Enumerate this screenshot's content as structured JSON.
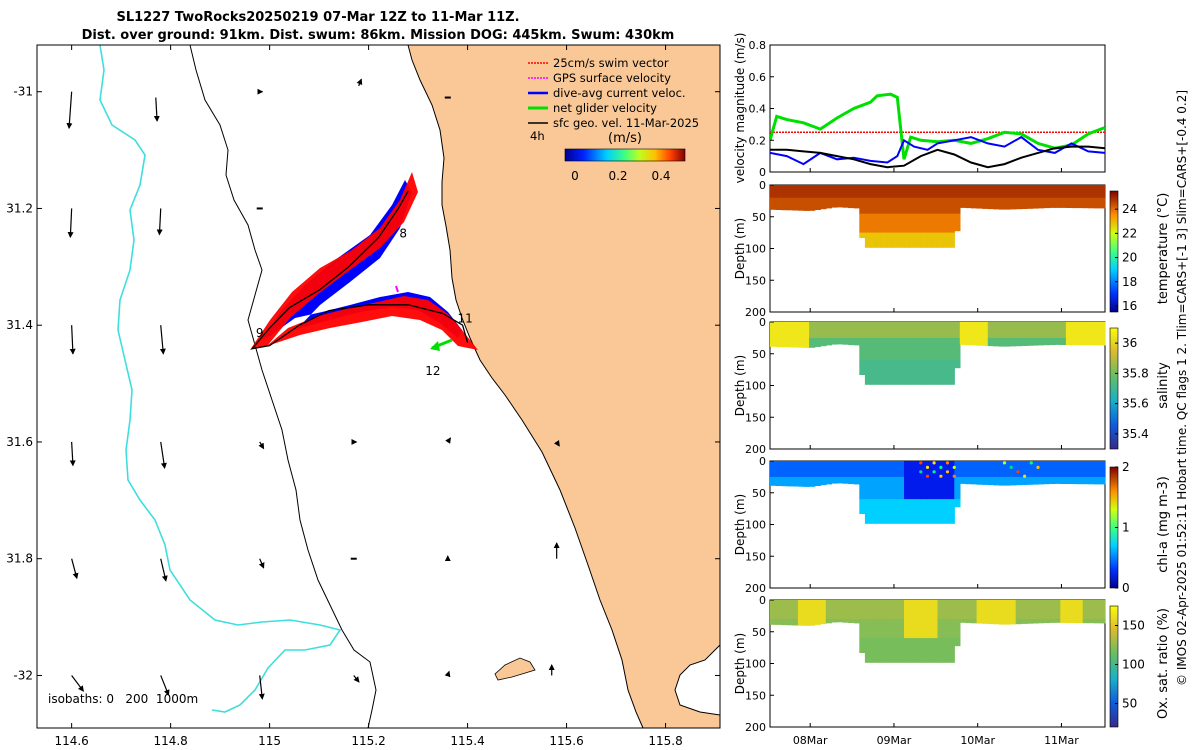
{
  "title": {
    "line1": "SL1227 TwoRocks20250219 07-Mar 12Z to 11-Mar 11Z.",
    "line2": "Dist. over ground: 91km. Dist. swum: 86km. Mission DOG: 445km. Swum: 430km"
  },
  "side_caption": "© IMOS 02-Apr-2025 01:52:11 Hobart time. QC flags 1  2. Tlim=CARS+[-1 3] Slim=CARS+[-0.4 0.2]",
  "colors": {
    "land": "#f9c896",
    "coast": "#000000",
    "isobath_0": "#000000",
    "isobath_1000": "#3fdede",
    "swim_vector": "#ff0000",
    "gps_velocity": "#ff00ff",
    "dive_avg": "#0000ff",
    "net_glider": "#00e000",
    "sfc_geo": "#000000"
  },
  "chart_data": [
    {
      "id": "track-map",
      "type": "scatter",
      "title": "SL1227 TwoRocks20250219 07-Mar 12Z to 11-Mar 11Z.",
      "xlim": [
        114.53,
        115.91
      ],
      "ylim": [
        -32.09,
        -30.92
      ],
      "x_ticks": [
        114.6,
        114.8,
        115,
        115.2,
        115.4,
        115.6,
        115.8
      ],
      "x_tick_labels": [
        "114.6",
        "114.8",
        "115",
        "115.2",
        "115.4",
        "115.6",
        "115.8"
      ],
      "y_ticks": [
        -31,
        -31.2,
        -31.4,
        -31.6,
        -31.8,
        -32
      ],
      "y_tick_labels": [
        "-31",
        "31.2",
        "31.4",
        "31.6",
        "31.8",
        "-32"
      ],
      "legend": [
        {
          "label": "25cm/s swim vector",
          "color": "#ff0000"
        },
        {
          "label": "GPS surface velocity",
          "color": "#ff00ff"
        },
        {
          "label": "dive-avg current veloc.",
          "color": "#0000ff"
        },
        {
          "label": "net glider velocity",
          "color": "#00e000"
        },
        {
          "label": "sfc geo. vel. 11-Mar-2025",
          "color": "#000000"
        }
      ],
      "legend_extra": "4h",
      "colorbar": {
        "label": "(m/s)",
        "ticks": [
          "0",
          "0.2",
          "0.4"
        ],
        "range": [
          0,
          0.5
        ]
      },
      "isobath_caption": "isobaths: 0   200  1000m",
      "track": [
        [
          115.28,
          -31.17
        ],
        [
          115.26,
          -31.2
        ],
        [
          115.22,
          -31.25
        ],
        [
          115.16,
          -31.3
        ],
        [
          115.1,
          -31.34
        ],
        [
          115.04,
          -31.37
        ],
        [
          115.0,
          -31.405
        ],
        [
          114.965,
          -31.44
        ],
        [
          115.0,
          -31.435
        ],
        [
          115.06,
          -31.4
        ],
        [
          115.12,
          -31.375
        ],
        [
          115.2,
          -31.365
        ],
        [
          115.28,
          -31.365
        ],
        [
          115.35,
          -31.38
        ],
        [
          115.39,
          -31.4
        ],
        [
          115.4,
          -31.43
        ]
      ],
      "day_labels": [
        {
          "label": "8",
          "x": 115.27,
          "y": -31.25
        },
        {
          "label": "9",
          "x": 114.98,
          "y": -31.42
        },
        {
          "label": "11",
          "x": 115.395,
          "y": -31.395
        },
        {
          "label": "12",
          "x": 115.33,
          "y": -31.485
        }
      ],
      "geo_vectors": [
        {
          "x": 114.6,
          "y": -31.0,
          "u": -0.02,
          "v": -0.28
        },
        {
          "x": 114.77,
          "y": -31.01,
          "u": 0.01,
          "v": -0.18
        },
        {
          "x": 114.98,
          "y": -31.0,
          "u": 0.02,
          "v": 0.0
        },
        {
          "x": 115.18,
          "y": -30.99,
          "u": 0.02,
          "v": 0.05
        },
        {
          "x": 115.36,
          "y": -31.01,
          "u": 0.0,
          "v": 0.0
        },
        {
          "x": 114.6,
          "y": -31.2,
          "u": -0.01,
          "v": -0.22
        },
        {
          "x": 114.78,
          "y": -31.2,
          "u": -0.01,
          "v": -0.2
        },
        {
          "x": 114.98,
          "y": -31.2,
          "u": 0.01,
          "v": 0.0
        },
        {
          "x": 114.6,
          "y": -31.4,
          "u": 0.01,
          "v": -0.22
        },
        {
          "x": 114.78,
          "y": -31.4,
          "u": 0.02,
          "v": -0.22
        },
        {
          "x": 114.6,
          "y": -31.6,
          "u": 0.01,
          "v": -0.18
        },
        {
          "x": 114.78,
          "y": -31.6,
          "u": 0.03,
          "v": -0.2
        },
        {
          "x": 114.98,
          "y": -31.6,
          "u": 0.03,
          "v": -0.05
        },
        {
          "x": 115.17,
          "y": -31.6,
          "u": 0.02,
          "v": 0.0
        },
        {
          "x": 115.36,
          "y": -31.6,
          "u": 0.02,
          "v": 0.03
        },
        {
          "x": 115.58,
          "y": -31.6,
          "u": 0.02,
          "v": -0.03
        },
        {
          "x": 114.6,
          "y": -31.8,
          "u": 0.04,
          "v": -0.15
        },
        {
          "x": 114.78,
          "y": -31.8,
          "u": 0.04,
          "v": -0.17
        },
        {
          "x": 114.98,
          "y": -31.8,
          "u": 0.03,
          "v": -0.07
        },
        {
          "x": 115.17,
          "y": -31.8,
          "u": 0.01,
          "v": 0.0
        },
        {
          "x": 115.36,
          "y": -31.8,
          "u": 0.0,
          "v": 0.02
        },
        {
          "x": 115.58,
          "y": -31.8,
          "u": 0.0,
          "v": 0.12
        },
        {
          "x": 114.6,
          "y": -32.0,
          "u": 0.09,
          "v": -0.12
        },
        {
          "x": 114.78,
          "y": -32.0,
          "u": 0.06,
          "v": -0.15
        },
        {
          "x": 114.98,
          "y": -32.0,
          "u": 0.02,
          "v": -0.18
        },
        {
          "x": 115.17,
          "y": -32.0,
          "u": 0.04,
          "v": -0.05
        },
        {
          "x": 115.36,
          "y": -32.0,
          "u": 0.01,
          "v": 0.03
        },
        {
          "x": 115.57,
          "y": -32.0,
          "u": 0.0,
          "v": 0.08
        }
      ]
    },
    {
      "id": "velocity",
      "type": "line",
      "ylabel": "velocity magnitude (m/s)",
      "ylim": [
        0,
        0.8
      ],
      "y_ticks": [
        0,
        0.2,
        0.4,
        0.6,
        0.8
      ],
      "x_ticks": [
        "08Mar",
        "09Mar",
        "10Mar",
        "11Mar"
      ],
      "series": [
        {
          "name": "25cm/s swim vector",
          "color": "#ff0000",
          "x": [
            0,
            0.25,
            0.5,
            0.75,
            1.0
          ],
          "y": [
            0.25,
            0.25,
            0.25,
            0.25,
            0.25
          ]
        },
        {
          "name": "net glider velocity",
          "color": "#00e000",
          "x": [
            0,
            0.02,
            0.05,
            0.1,
            0.15,
            0.2,
            0.25,
            0.3,
            0.32,
            0.36,
            0.38,
            0.4,
            0.42,
            0.45,
            0.5,
            0.55,
            0.6,
            0.65,
            0.7,
            0.75,
            0.8,
            0.85,
            0.9,
            0.95,
            1.0
          ],
          "y": [
            0.2,
            0.35,
            0.33,
            0.31,
            0.27,
            0.34,
            0.4,
            0.44,
            0.48,
            0.49,
            0.47,
            0.08,
            0.22,
            0.2,
            0.19,
            0.2,
            0.18,
            0.21,
            0.25,
            0.24,
            0.18,
            0.15,
            0.17,
            0.24,
            0.28
          ]
        },
        {
          "name": "dive-avg current veloc.",
          "color": "#0000ff",
          "x": [
            0,
            0.05,
            0.1,
            0.15,
            0.2,
            0.25,
            0.3,
            0.35,
            0.38,
            0.4,
            0.43,
            0.47,
            0.5,
            0.55,
            0.6,
            0.65,
            0.7,
            0.75,
            0.8,
            0.85,
            0.9,
            0.95,
            1.0
          ],
          "y": [
            0.12,
            0.1,
            0.05,
            0.12,
            0.08,
            0.09,
            0.07,
            0.06,
            0.1,
            0.2,
            0.16,
            0.14,
            0.18,
            0.2,
            0.22,
            0.18,
            0.16,
            0.22,
            0.14,
            0.12,
            0.18,
            0.13,
            0.12
          ]
        },
        {
          "name": "sfc geo. vel.",
          "color": "#000000",
          "x": [
            0,
            0.05,
            0.1,
            0.15,
            0.2,
            0.25,
            0.3,
            0.35,
            0.4,
            0.45,
            0.5,
            0.55,
            0.6,
            0.65,
            0.7,
            0.75,
            0.8,
            0.85,
            0.9,
            0.95,
            1.0
          ],
          "y": [
            0.14,
            0.14,
            0.13,
            0.12,
            0.1,
            0.08,
            0.05,
            0.03,
            0.04,
            0.1,
            0.14,
            0.11,
            0.06,
            0.03,
            0.05,
            0.09,
            0.12,
            0.15,
            0.16,
            0.16,
            0.15
          ]
        }
      ]
    },
    {
      "id": "temperature",
      "type": "heatmap",
      "ylabel": "Depth (m)",
      "clabel": "temperature (°C)",
      "ylim": [
        200,
        0
      ],
      "y_ticks": [
        0,
        50,
        100,
        150,
        200
      ],
      "c_ticks": [
        "16",
        "18",
        "20",
        "22",
        "24"
      ],
      "c_range": [
        15.5,
        25.5
      ],
      "x_ticks": [
        "08Mar",
        "09Mar",
        "10Mar",
        "11Mar"
      ],
      "bands": [
        {
          "depth": [
            0,
            20
          ],
          "value": 24.8
        },
        {
          "depth": [
            20,
            45
          ],
          "value": 24.4
        },
        {
          "depth": [
            45,
            75
          ],
          "value": 23.8
        },
        {
          "depth": [
            75,
            100
          ],
          "value": 22.8
        }
      ]
    },
    {
      "id": "salinity",
      "type": "heatmap",
      "ylabel": "Depth (m)",
      "clabel": "salinity",
      "ylim": [
        200,
        0
      ],
      "y_ticks": [
        0,
        50,
        100,
        150,
        200
      ],
      "c_ticks": [
        "35.4",
        "35.6",
        "35.8",
        "36"
      ],
      "c_range": [
        35.3,
        36.1
      ],
      "x_ticks": [
        "08Mar",
        "09Mar",
        "10Mar",
        "11Mar"
      ],
      "bands": [
        {
          "depth": [
            0,
            25
          ],
          "value": 35.85
        },
        {
          "depth": [
            25,
            60
          ],
          "value": 35.75
        },
        {
          "depth": [
            60,
            100
          ],
          "value": 35.72
        }
      ]
    },
    {
      "id": "chla",
      "type": "heatmap",
      "ylabel": "Depth (m)",
      "clabel": "chl-a (mg m-3)",
      "ylim": [
        200,
        0
      ],
      "y_ticks": [
        0,
        50,
        100,
        150,
        200
      ],
      "c_ticks": [
        "0",
        "1",
        "2"
      ],
      "c_range": [
        0,
        2
      ],
      "x_ticks": [
        "08Mar",
        "09Mar",
        "10Mar",
        "11Mar"
      ],
      "bands": [
        {
          "depth": [
            0,
            25
          ],
          "value": 0.45
        },
        {
          "depth": [
            25,
            60
          ],
          "value": 0.6
        },
        {
          "depth": [
            60,
            100
          ],
          "value": 0.7
        }
      ]
    },
    {
      "id": "oxygen",
      "type": "heatmap",
      "ylabel": "Depth (m)",
      "clabel": "Ox. sat. ratio (%)",
      "ylim": [
        200,
        0
      ],
      "y_ticks": [
        0,
        50,
        100,
        150,
        200
      ],
      "c_ticks": [
        "50",
        "100",
        "150"
      ],
      "c_range": [
        20,
        175
      ],
      "x_ticks": [
        "08Mar",
        "09Mar",
        "10Mar",
        "11Mar"
      ],
      "bands": [
        {
          "depth": [
            0,
            30
          ],
          "value": 128
        },
        {
          "depth": [
            30,
            60
          ],
          "value": 122
        },
        {
          "depth": [
            60,
            100
          ],
          "value": 118
        }
      ]
    }
  ]
}
